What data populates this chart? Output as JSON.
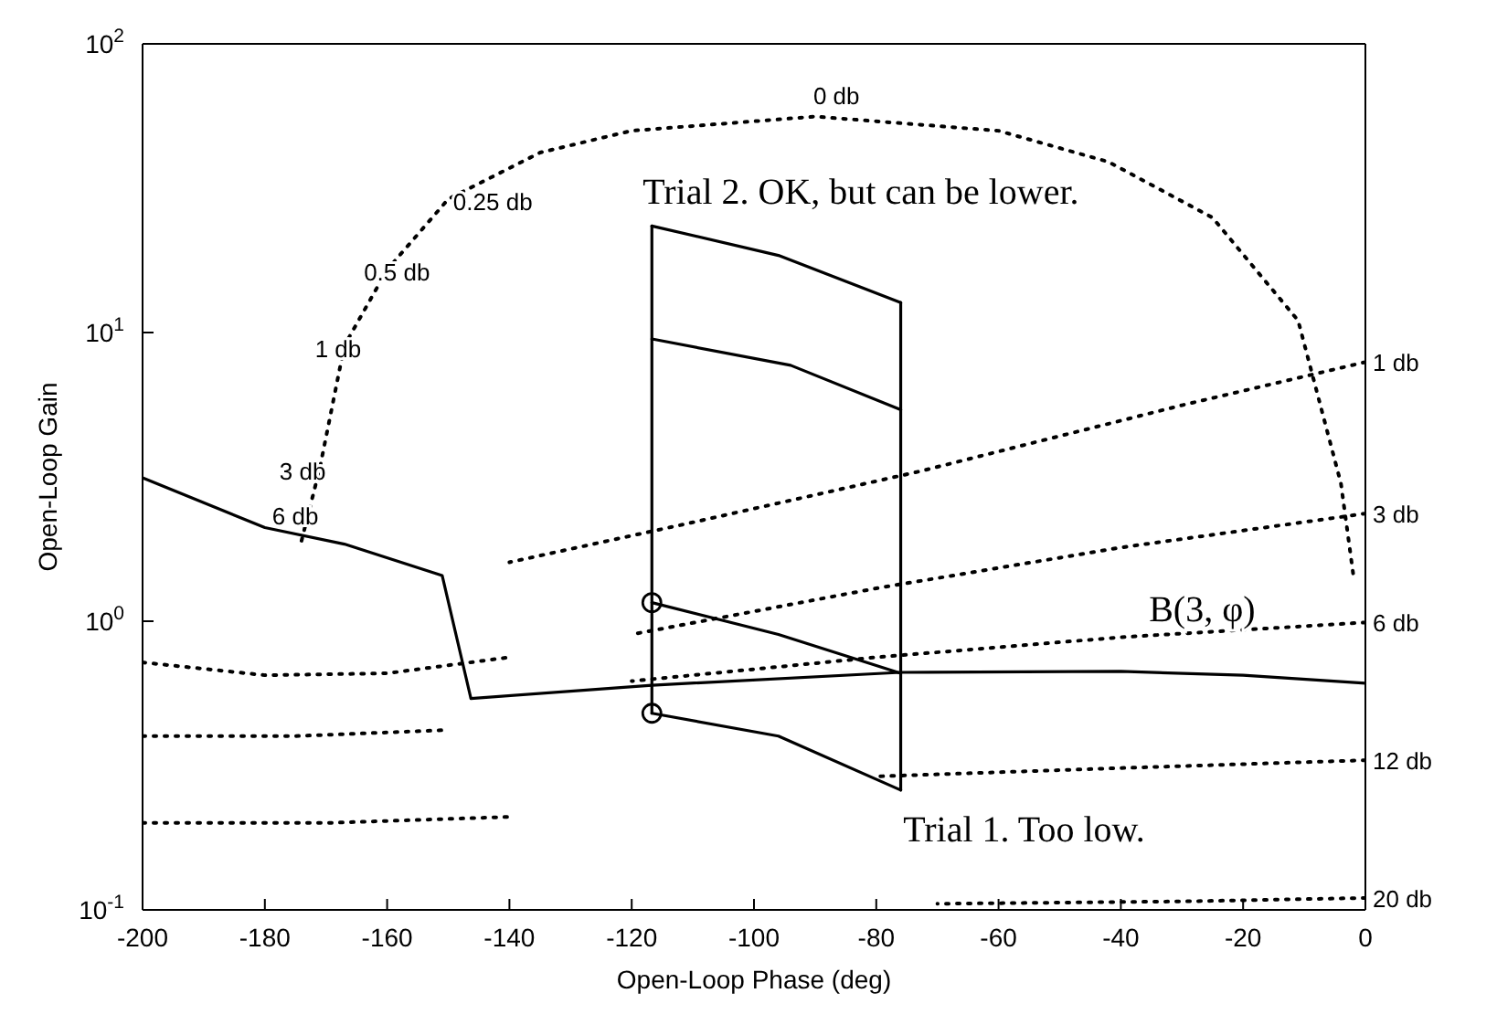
{
  "chart_data": {
    "type": "line",
    "xlabel": "Open-Loop Phase (deg)",
    "ylabel": "Open-Loop Gain",
    "log": "y",
    "grid": false,
    "xlim": [
      -200,
      0
    ],
    "xticks": [
      -200,
      -180,
      -160,
      -140,
      -120,
      -100,
      -80,
      -60,
      -40,
      -20,
      0
    ],
    "ylim": [
      0.1,
      100
    ],
    "yticks": [
      {
        "value": 0.1,
        "label": "10$^{-1}$"
      },
      {
        "value": 1,
        "label": "10$^{0}$"
      },
      {
        "value": 10,
        "label": "10$^{1}$"
      },
      {
        "value": 100,
        "label": "10$^{2}$"
      }
    ],
    "series": [
      {
        "color": "#000000",
        "line_style": "solid",
        "marker": "none",
        "x": [
          -200,
          -180,
          -167,
          -151,
          -146.3,
          -116.7,
          -76,
          -40,
          -20,
          0
        ],
        "values": [
          3.14,
          2.11,
          1.85,
          1.44,
          0.54,
          0.6,
          0.665,
          0.67,
          0.65,
          0.61
        ]
      },
      {
        "color": "#000000",
        "line_style": "solid",
        "marker": "none",
        "x": [
          -116.7,
          -116.7
        ],
        "values": [
          23.4,
          0.48
        ]
      },
      {
        "color": "#000000",
        "line_style": "solid",
        "marker": "none",
        "x": [
          -76,
          -76
        ],
        "values": [
          12.7,
          0.26
        ]
      },
      {
        "color": "#000000",
        "line_style": "solid",
        "marker": "none",
        "x": [
          -116.7,
          -96,
          -76
        ],
        "values": [
          23.4,
          18.5,
          12.7
        ]
      },
      {
        "color": "#000000",
        "line_style": "solid",
        "marker": "none",
        "x": [
          -116.7,
          -94,
          -76
        ],
        "values": [
          9.5,
          7.7,
          5.4
        ]
      },
      {
        "color": "#000000",
        "line_style": "solid",
        "marker": "none",
        "x": [
          -116.7,
          -96,
          -76
        ],
        "values": [
          1.16,
          0.9,
          0.66
        ]
      },
      {
        "color": "#000000",
        "line_style": "solid",
        "marker": "none",
        "x": [
          -116.7,
          -96,
          -76
        ],
        "values": [
          0.48,
          0.4,
          0.26
        ]
      },
      {
        "type": "scatter",
        "color": "#000000",
        "marker": "circle",
        "x": [
          -116.7,
          -116.7
        ],
        "values": [
          1.16,
          0.48
        ]
      },
      {
        "color": "#000000",
        "line_style": "dotted",
        "marker": "none",
        "x": [
          -174,
          -171,
          -167,
          -160,
          -150,
          -135,
          -120,
          -90,
          -60,
          -42,
          -25,
          -11,
          -4,
          -2
        ],
        "values": [
          1.9,
          3.4,
          9,
          16.5,
          29,
          42,
          50,
          56,
          50,
          39,
          25,
          11,
          3,
          1.46
        ]
      },
      {
        "color": "#000000",
        "line_style": "dotted",
        "marker": "none",
        "x": [
          -200,
          -170,
          -140
        ],
        "values": [
          0.2,
          0.2,
          0.21
        ]
      },
      {
        "color": "#000000",
        "line_style": "dotted",
        "marker": "none",
        "x": [
          -200,
          -175,
          -150
        ],
        "values": [
          0.4,
          0.4,
          0.42
        ]
      },
      {
        "color": "#000000",
        "line_style": "dotted",
        "marker": "none",
        "x": [
          -200,
          -180,
          -160,
          -140
        ],
        "values": [
          0.72,
          0.65,
          0.66,
          0.75
        ]
      },
      {
        "color": "#000000",
        "line_style": "dotted",
        "marker": "none",
        "x": [
          0,
          -30,
          -73,
          -110,
          -140
        ],
        "values": [
          7.9,
          5.6,
          3.3,
          2.2,
          1.6
        ]
      },
      {
        "color": "#000000",
        "line_style": "dotted",
        "marker": "none",
        "x": [
          0,
          -40,
          -80,
          -120
        ],
        "values": [
          2.36,
          1.8,
          1.3,
          0.9
        ]
      },
      {
        "color": "#000000",
        "line_style": "dotted",
        "marker": "none",
        "x": [
          0,
          -40,
          -80,
          -120
        ],
        "values": [
          0.99,
          0.88,
          0.75,
          0.62
        ]
      },
      {
        "color": "#000000",
        "line_style": "dotted",
        "marker": "none",
        "x": [
          0,
          -40,
          -80
        ],
        "values": [
          0.33,
          0.31,
          0.29
        ]
      },
      {
        "color": "#000000",
        "line_style": "dotted",
        "marker": "none",
        "x": [
          0,
          -30,
          -70
        ],
        "values": [
          0.11,
          0.107,
          0.105
        ]
      }
    ],
    "annotations": [
      "Trial 2. OK, but can be lower.",
      "Trial 1. Too low.",
      {
        "text": "B(3, φ)",
        "x": -35.4,
        "y": 0.9
      },
      {
        "text": "0 db",
        "x": -90.3,
        "y": 55.8
      },
      "0.25 db",
      "0.5 db",
      "1 db",
      "3 db",
      {
        "text": "6 db",
        "x": -178.8,
        "y": 1.96
      },
      {
        "text": "1 db",
        "x": 0,
        "y": 7.9
      },
      {
        "text": "3 db",
        "x": 0,
        "y": 2.36
      },
      {
        "text": "6 db",
        "x": 0,
        "y": 0.99
      },
      {
        "text": "12 db",
        "x": 0,
        "y": 0.33
      },
      {
        "text": "20 db",
        "x": 0,
        "y": 0.11
      }
    ]
  }
}
